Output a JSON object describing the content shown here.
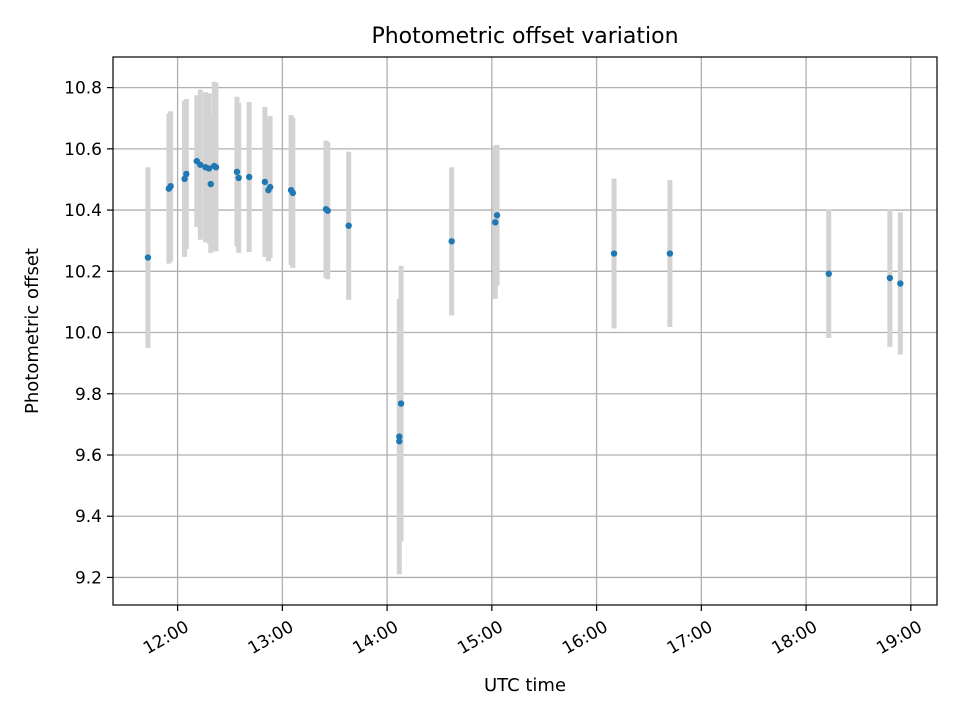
{
  "chart_data": {
    "type": "scatter",
    "title": "Photometric offset variation",
    "xlabel": "UTC time",
    "ylabel": "Photometric offset",
    "xlim": [
      "11:23",
      "19:15"
    ],
    "ylim": [
      9.11,
      10.9
    ],
    "grid": true,
    "x_ticks": [
      "12:00",
      "13:00",
      "14:00",
      "15:00",
      "16:00",
      "17:00",
      "18:00",
      "19:00"
    ],
    "y_ticks": [
      "9.2",
      "9.4",
      "9.6",
      "9.8",
      "10.0",
      "10.2",
      "10.4",
      "10.6",
      "10.8"
    ],
    "colors": {
      "points": "#1f77b4",
      "errorbars": "#d3d3d3"
    },
    "series": [
      {
        "points": [
          {
            "x": "11:43",
            "y": 10.245,
            "err": 0.295
          },
          {
            "x": "11:55",
            "y": 10.47,
            "err": 0.245
          },
          {
            "x": "11:56",
            "y": 10.478,
            "err": 0.245
          },
          {
            "x": "12:04",
            "y": 10.502,
            "err": 0.255
          },
          {
            "x": "12:05",
            "y": 10.518,
            "err": 0.245
          },
          {
            "x": "12:11",
            "y": 10.56,
            "err": 0.215
          },
          {
            "x": "12:13",
            "y": 10.548,
            "err": 0.245
          },
          {
            "x": "12:16",
            "y": 10.54,
            "err": 0.245
          },
          {
            "x": "12:18",
            "y": 10.536,
            "err": 0.245
          },
          {
            "x": "12:19",
            "y": 10.485,
            "err": 0.225
          },
          {
            "x": "12:21",
            "y": 10.544,
            "err": 0.275
          },
          {
            "x": "12:22",
            "y": 10.54,
            "err": 0.275
          },
          {
            "x": "12:34",
            "y": 10.525,
            "err": 0.245
          },
          {
            "x": "12:35",
            "y": 10.505,
            "err": 0.245
          },
          {
            "x": "12:41",
            "y": 10.508,
            "err": 0.245
          },
          {
            "x": "12:50",
            "y": 10.492,
            "err": 0.245
          },
          {
            "x": "12:52",
            "y": 10.465,
            "err": 0.232
          },
          {
            "x": "12:53",
            "y": 10.475,
            "err": 0.232
          },
          {
            "x": "13:05",
            "y": 10.465,
            "err": 0.245
          },
          {
            "x": "13:06",
            "y": 10.456,
            "err": 0.245
          },
          {
            "x": "13:25",
            "y": 10.403,
            "err": 0.224
          },
          {
            "x": "13:26",
            "y": 10.398,
            "err": 0.224
          },
          {
            "x": "13:38",
            "y": 10.349,
            "err": 0.242
          },
          {
            "x": "14:07",
            "y": 9.66,
            "err": 0.45
          },
          {
            "x": "14:07",
            "y": 9.645,
            "err": 0.32
          },
          {
            "x": "14:08",
            "y": 9.768,
            "err": 0.45
          },
          {
            "x": "14:37",
            "y": 10.298,
            "err": 0.242
          },
          {
            "x": "15:02",
            "y": 10.36,
            "err": 0.25
          },
          {
            "x": "15:03",
            "y": 10.383,
            "err": 0.23
          },
          {
            "x": "16:10",
            "y": 10.258,
            "err": 0.245
          },
          {
            "x": "16:42",
            "y": 10.258,
            "err": 0.24
          },
          {
            "x": "18:13",
            "y": 10.192,
            "err": 0.21
          },
          {
            "x": "18:48",
            "y": 10.178,
            "err": 0.225
          },
          {
            "x": "18:54",
            "y": 10.16,
            "err": 0.232
          }
        ]
      }
    ]
  }
}
